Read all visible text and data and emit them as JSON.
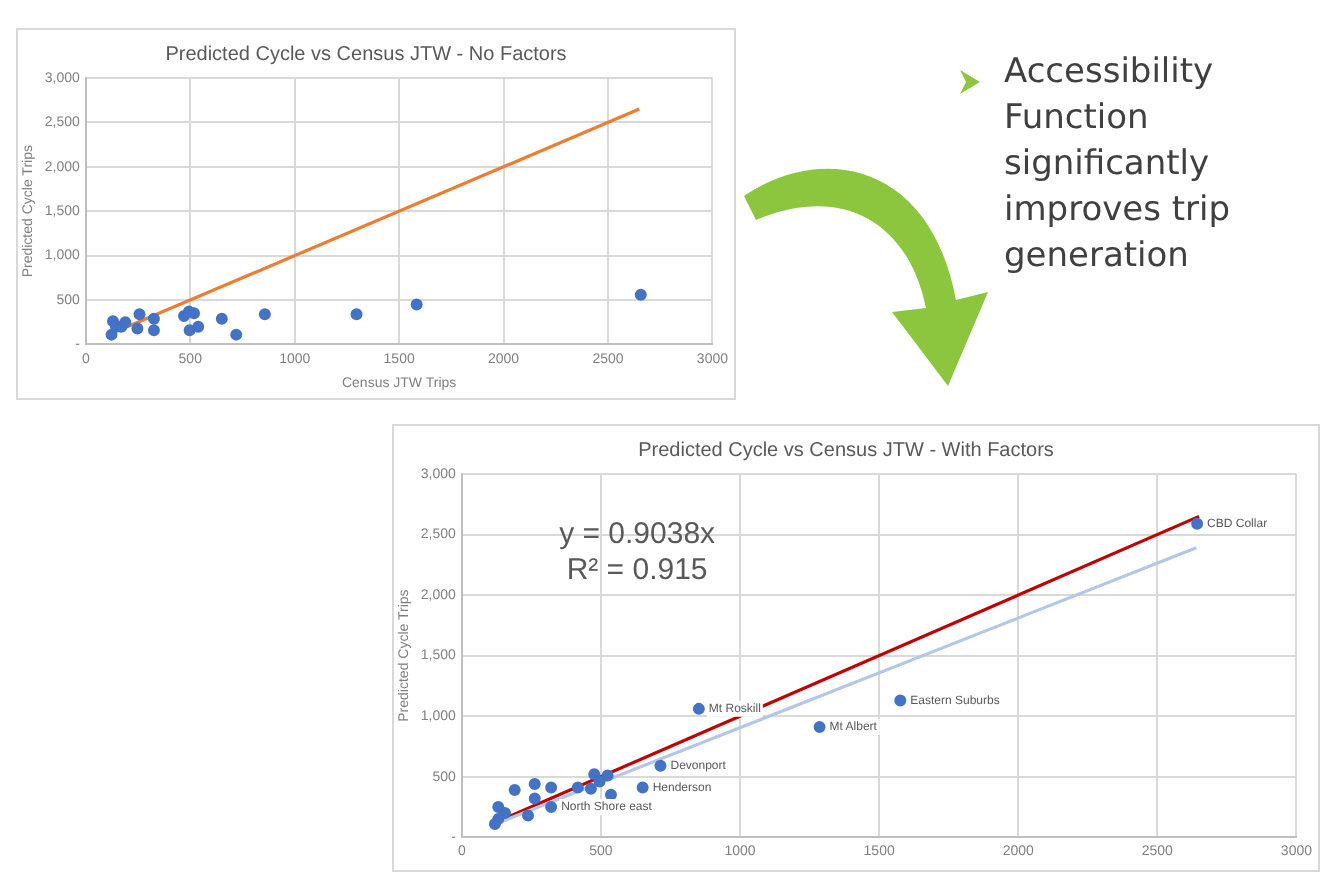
{
  "chart_data": [
    {
      "type": "scatter",
      "title": "Predicted Cycle vs Census JTW - No Factors",
      "xlabel": "Census JTW Trips",
      "ylabel": "Predicted Cycle Trips",
      "xlim": [
        0,
        3000
      ],
      "xticks": [
        0,
        500,
        1000,
        1500,
        2000,
        2500,
        3000
      ],
      "ylim": [
        0,
        3000
      ],
      "yticks": [
        {
          "value": 0,
          "label": "-"
        },
        {
          "value": 500,
          "label": "500"
        },
        {
          "value": 1000,
          "label": "1,000"
        },
        {
          "value": 1500,
          "label": "1,500"
        },
        {
          "value": 2000,
          "label": "2,000"
        },
        {
          "value": 2500,
          "label": "2,500"
        },
        {
          "value": 3000,
          "label": "3,000"
        }
      ],
      "grid": true,
      "marker": "circle",
      "series": [
        {
          "type": "scatter",
          "color": "#4472c4",
          "x": [
            123,
            130,
            144,
            170,
            189,
            247,
            257,
            326,
            326,
            470,
            494,
            497,
            518,
            538,
            651,
            720,
            857,
            1296,
            1584,
            2657
          ],
          "values": [
            110,
            260,
            200,
            200,
            250,
            180,
            340,
            290,
            160,
            320,
            370,
            160,
            350,
            200,
            290,
            110,
            340,
            340,
            450,
            560
          ]
        },
        {
          "type": "line",
          "marker": "none",
          "color": "#ed7d31",
          "x": [
            150,
            2650
          ],
          "values": [
            150,
            2650
          ]
        }
      ]
    },
    {
      "type": "other",
      "annotations": [
        "Accessibility Function significantly improves trip generation"
      ]
    },
    {
      "type": "scatter",
      "title": "Predicted Cycle vs Census JTW - With Factors",
      "ylabel": "Predicted Cycle Trips",
      "xlim": [
        0,
        3000
      ],
      "xticks": [
        0,
        500,
        1000,
        1500,
        2000,
        2500,
        3000
      ],
      "ylim": [
        0,
        3000
      ],
      "yticks": [
        {
          "value": 0,
          "label": "-"
        },
        {
          "value": 500,
          "label": "500"
        },
        {
          "value": 1000,
          "label": "1,000"
        },
        {
          "value": 1500,
          "label": "1,500"
        },
        {
          "value": 2000,
          "label": "2,000"
        },
        {
          "value": 2500,
          "label": "2,500"
        },
        {
          "value": 3000,
          "label": "3,000"
        }
      ],
      "grid": true,
      "marker": "circle",
      "series": [
        {
          "type": "scatter",
          "color": "#4472c4",
          "x": [
            119,
            131,
            131,
            155,
            190,
            238,
            262,
            262,
            321,
            321,
            417,
            464,
            476,
            495,
            524,
            536,
            650,
            714,
            852,
            1286,
            1576,
            2643
          ],
          "values": [
            110,
            150,
            250,
            200,
            390,
            180,
            440,
            320,
            410,
            250,
            410,
            400,
            520,
            460,
            510,
            350,
            410,
            590,
            1060,
            910,
            1130,
            2590
          ]
        },
        {
          "type": "line",
          "marker": "none",
          "color": "#b4c7e7",
          "x": [
            100,
            2640
          ],
          "values": [
            90,
            2390
          ]
        },
        {
          "type": "line",
          "marker": "none",
          "color": "#c00000",
          "x": [
            100,
            2650
          ],
          "values": [
            100,
            2650
          ]
        }
      ],
      "annotations": [
        "y = 0.9038x",
        "R² = 0.915",
        {
          "text": "North Shore east",
          "x": 321,
          "y": 250
        },
        {
          "text": "Henderson",
          "x": 650,
          "y": 410
        },
        {
          "text": "Devonport",
          "x": 714,
          "y": 590
        },
        {
          "text": "Mt Roskill",
          "x": 852,
          "y": 1060
        },
        {
          "text": "Mt Albert",
          "x": 1286,
          "y": 910
        },
        {
          "text": "Eastern Suburbs",
          "x": 1576,
          "y": 1130
        },
        {
          "text": "CBD Collar",
          "x": 2643,
          "y": 2590
        }
      ]
    }
  ]
}
